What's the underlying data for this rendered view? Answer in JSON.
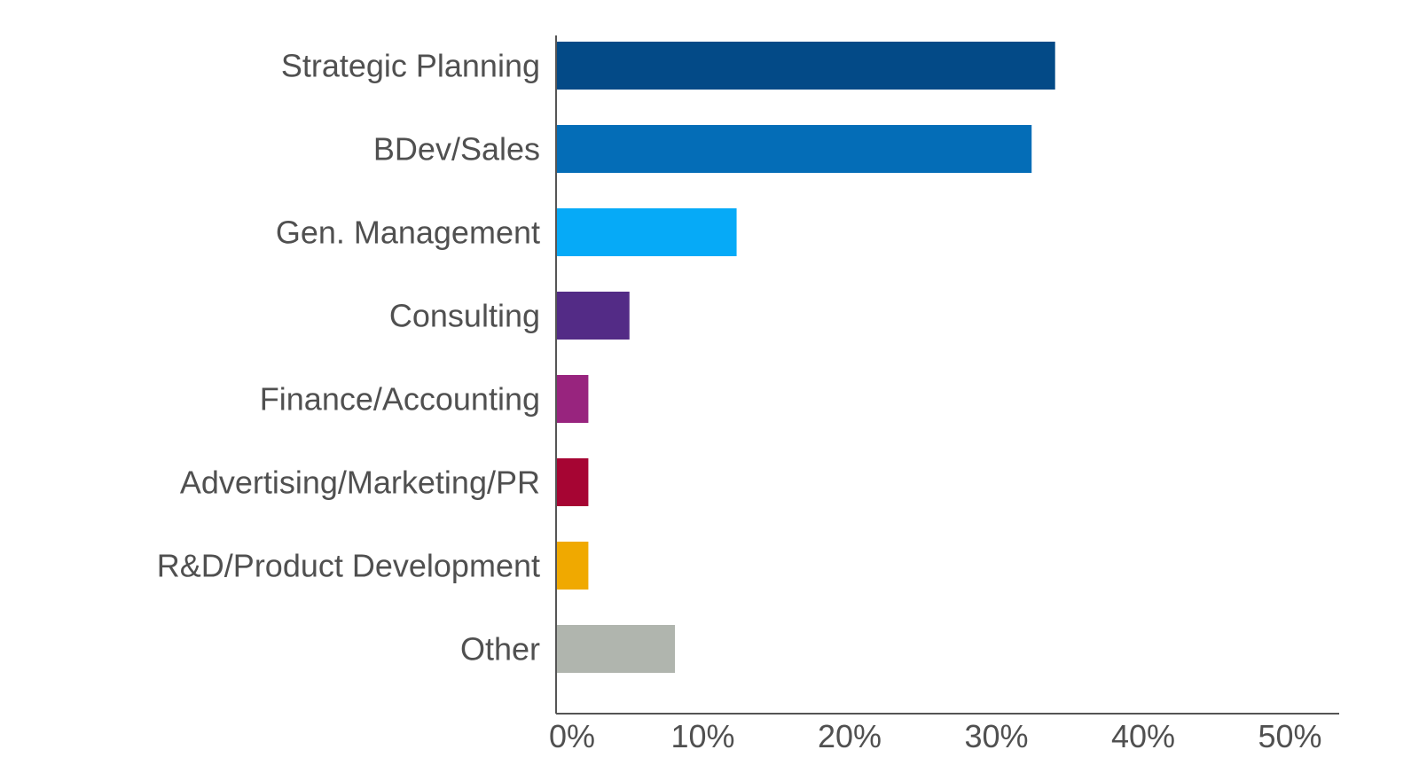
{
  "chart_data": {
    "type": "bar",
    "orientation": "horizontal",
    "categories": [
      "Strategic Planning",
      "BDev/Sales",
      "Gen. Management",
      "Consulting",
      "Finance/Accounting",
      "Advertising/Marketing/PR",
      "R&D/Product Development",
      "Other"
    ],
    "values": [
      34,
      32.4,
      12.3,
      5,
      2.2,
      2.2,
      2.2,
      8.1
    ],
    "colors": [
      "#034a87",
      "#046db7",
      "#06aaf7",
      "#532b86",
      "#98247e",
      "#a60533",
      "#f0a900",
      "#b0b5ae"
    ],
    "x_ticks": [
      0,
      10,
      20,
      30,
      40,
      50
    ],
    "x_tick_labels": [
      "0%",
      "10%",
      "20%",
      "30%",
      "40%",
      "50%"
    ],
    "xlim": [
      0,
      53
    ],
    "title": "",
    "xlabel": "",
    "ylabel": "",
    "grid": false,
    "legend": "none"
  }
}
